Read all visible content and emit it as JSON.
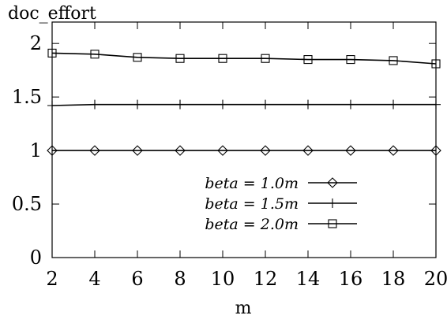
{
  "chart_data": {
    "type": "line",
    "ylabel": "doc_effort",
    "xlabel": "m",
    "x": [
      2,
      4,
      6,
      8,
      10,
      12,
      14,
      16,
      18,
      20
    ],
    "xlim": [
      2,
      20
    ],
    "ylim": [
      0,
      2.2
    ],
    "xticks": [
      2,
      4,
      6,
      8,
      10,
      12,
      14,
      16,
      18,
      20
    ],
    "yticks": [
      0,
      0.5,
      1,
      1.5,
      2
    ],
    "ytick_labels": [
      "0",
      "0.5",
      "1",
      "1.5",
      "2"
    ],
    "grid": false,
    "legend_position": "center-right",
    "series": [
      {
        "name": "beta = 1.0m",
        "marker": "diamond",
        "values": [
          1.0,
          1.0,
          1.0,
          1.0,
          1.0,
          1.0,
          1.0,
          1.0,
          1.0,
          1.0
        ]
      },
      {
        "name": "beta = 1.5m",
        "marker": "plus",
        "values": [
          1.42,
          1.43,
          1.43,
          1.43,
          1.43,
          1.43,
          1.43,
          1.43,
          1.43,
          1.43
        ]
      },
      {
        "name": "beta = 2.0m",
        "marker": "square",
        "values": [
          1.91,
          1.9,
          1.87,
          1.86,
          1.86,
          1.86,
          1.85,
          1.85,
          1.84,
          1.81
        ]
      }
    ],
    "colors": {
      "line": "#000000",
      "background": "#ffffff"
    }
  }
}
